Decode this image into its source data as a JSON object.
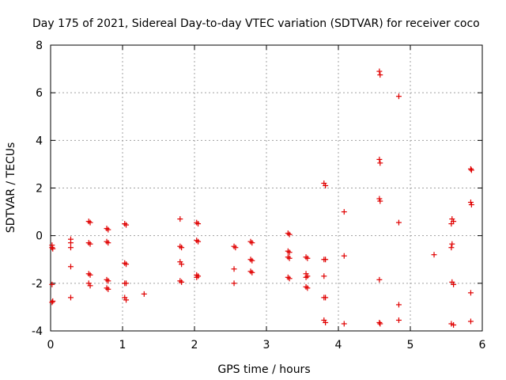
{
  "chart_data": {
    "type": "scatter",
    "title": "Day 175 of 2021, Sidereal Day-to-day VTEC variation (SDTVAR) for receiver coco",
    "xlabel": "GPS time / hours",
    "ylabel": "SDTVAR / TECUs",
    "xlim": [
      0,
      6
    ],
    "ylim": [
      -4,
      8
    ],
    "xticks": [
      "0",
      "1",
      "2",
      "3",
      "4",
      "5",
      "6"
    ],
    "yticks": [
      "-4",
      "-2",
      "0",
      "2",
      "4",
      "6",
      "8"
    ],
    "grid": true,
    "marker": "plus",
    "color": "#e00000",
    "series": [
      {
        "name": "SDTVAR",
        "points": [
          [
            0.02,
            -0.4
          ],
          [
            0.02,
            -0.5
          ],
          [
            0.03,
            -0.55
          ],
          [
            0.02,
            -2.05
          ],
          [
            0.03,
            -2.75
          ],
          [
            0.02,
            -2.8
          ],
          [
            0.28,
            -0.15
          ],
          [
            0.28,
            -0.3
          ],
          [
            0.28,
            -0.5
          ],
          [
            0.28,
            -1.3
          ],
          [
            0.28,
            -2.6
          ],
          [
            0.53,
            0.6
          ],
          [
            0.55,
            0.55
          ],
          [
            0.53,
            -0.3
          ],
          [
            0.55,
            -0.35
          ],
          [
            0.53,
            -1.6
          ],
          [
            0.55,
            -1.65
          ],
          [
            0.53,
            -2.0
          ],
          [
            0.55,
            -2.1
          ],
          [
            0.78,
            0.3
          ],
          [
            0.8,
            0.25
          ],
          [
            0.78,
            -0.25
          ],
          [
            0.8,
            -0.3
          ],
          [
            0.78,
            -1.85
          ],
          [
            0.8,
            -1.9
          ],
          [
            0.78,
            -2.2
          ],
          [
            0.8,
            -2.25
          ],
          [
            1.03,
            0.5
          ],
          [
            1.05,
            0.45
          ],
          [
            1.03,
            -1.15
          ],
          [
            1.05,
            -1.2
          ],
          [
            1.03,
            -2.0
          ],
          [
            1.05,
            -2.0
          ],
          [
            1.03,
            -2.6
          ],
          [
            1.05,
            -2.7
          ],
          [
            1.3,
            -2.45
          ],
          [
            1.8,
            0.7
          ],
          [
            1.8,
            -0.45
          ],
          [
            1.82,
            -0.5
          ],
          [
            1.8,
            -1.1
          ],
          [
            1.82,
            -1.2
          ],
          [
            1.8,
            -1.9
          ],
          [
            1.82,
            -1.95
          ],
          [
            2.03,
            0.55
          ],
          [
            2.05,
            0.5
          ],
          [
            2.03,
            -0.2
          ],
          [
            2.05,
            -0.25
          ],
          [
            2.03,
            -1.65
          ],
          [
            2.05,
            -1.7
          ],
          [
            2.03,
            -1.75
          ],
          [
            2.55,
            -0.45
          ],
          [
            2.57,
            -0.5
          ],
          [
            2.55,
            -1.4
          ],
          [
            2.55,
            -2.0
          ],
          [
            2.78,
            -0.25
          ],
          [
            2.8,
            -0.3
          ],
          [
            2.78,
            -1.0
          ],
          [
            2.8,
            -1.05
          ],
          [
            2.78,
            -1.5
          ],
          [
            2.8,
            -1.55
          ],
          [
            3.3,
            0.1
          ],
          [
            3.32,
            0.05
          ],
          [
            3.3,
            -0.65
          ],
          [
            3.32,
            -0.7
          ],
          [
            3.3,
            -0.9
          ],
          [
            3.32,
            -0.95
          ],
          [
            3.3,
            -1.75
          ],
          [
            3.32,
            -1.8
          ],
          [
            3.55,
            -0.9
          ],
          [
            3.57,
            -0.95
          ],
          [
            3.55,
            -1.6
          ],
          [
            3.57,
            -1.7
          ],
          [
            3.55,
            -1.75
          ],
          [
            3.55,
            -2.15
          ],
          [
            3.57,
            -2.2
          ],
          [
            3.8,
            2.2
          ],
          [
            3.82,
            2.1
          ],
          [
            3.8,
            -1.0
          ],
          [
            3.82,
            -1.0
          ],
          [
            3.8,
            -1.7
          ],
          [
            3.8,
            -2.6
          ],
          [
            3.82,
            -2.6
          ],
          [
            3.8,
            -3.55
          ],
          [
            3.82,
            -3.65
          ],
          [
            4.08,
            1.0
          ],
          [
            4.08,
            -0.85
          ],
          [
            4.08,
            -3.7
          ],
          [
            4.57,
            6.9
          ],
          [
            4.58,
            6.75
          ],
          [
            4.57,
            3.2
          ],
          [
            4.58,
            3.05
          ],
          [
            4.57,
            1.55
          ],
          [
            4.58,
            1.45
          ],
          [
            4.57,
            -1.85
          ],
          [
            4.57,
            -3.65
          ],
          [
            4.58,
            -3.7
          ],
          [
            4.84,
            5.85
          ],
          [
            4.84,
            0.55
          ],
          [
            4.84,
            -2.9
          ],
          [
            4.84,
            -3.55
          ],
          [
            5.33,
            -0.8
          ],
          [
            5.58,
            0.7
          ],
          [
            5.6,
            0.6
          ],
          [
            5.57,
            0.5
          ],
          [
            5.58,
            -0.35
          ],
          [
            5.57,
            -0.5
          ],
          [
            5.58,
            -1.95
          ],
          [
            5.6,
            -2.05
          ],
          [
            5.57,
            -3.7
          ],
          [
            5.6,
            -3.75
          ],
          [
            5.84,
            2.8
          ],
          [
            5.85,
            2.75
          ],
          [
            5.84,
            1.4
          ],
          [
            5.85,
            1.3
          ],
          [
            5.84,
            -2.4
          ],
          [
            5.84,
            -3.6
          ]
        ]
      }
    ]
  }
}
